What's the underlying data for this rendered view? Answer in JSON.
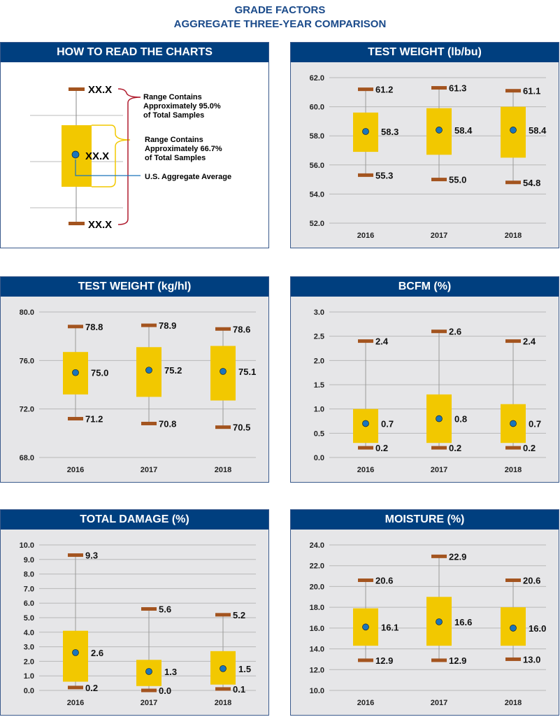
{
  "title_line1": "GRADE FACTORS",
  "title_line2": "AGGREGATE THREE-YEAR COMPARISON",
  "legend": {
    "title": "HOW TO READ THE CHARTS",
    "placeholder": "XX.X",
    "range95": [
      "Range Contains",
      "Approximately 95.0%",
      "of Total Samples"
    ],
    "range667": [
      "Range Contains",
      "Approximately 66.7%",
      "of Total Samples"
    ],
    "average": "U.S. Aggregate Average"
  },
  "colors": {
    "header": "#003f7f",
    "box": "#f2c800",
    "cap": "#a3541f",
    "dot": "#1b75bb",
    "grid": "#b8b8b8"
  },
  "chart_data": [
    {
      "id": "tw-lb",
      "type": "boxplot",
      "title": "TEST WEIGHT (lb/bu)",
      "categories": [
        "2016",
        "2017",
        "2018"
      ],
      "ylim": [
        52,
        62
      ],
      "yticks": [
        "52.0",
        "54.0",
        "56.0",
        "58.0",
        "60.0",
        "62.0"
      ],
      "tick_step": 2,
      "max": [
        61.2,
        61.3,
        61.1
      ],
      "max_labels": [
        "61.2",
        "61.3",
        "61.1"
      ],
      "min": [
        55.3,
        55.0,
        54.8
      ],
      "min_labels": [
        "55.3",
        "55.0",
        "54.8"
      ],
      "avg": [
        58.3,
        58.4,
        58.4
      ],
      "avg_labels": [
        "58.3",
        "58.4",
        "58.4"
      ],
      "box_high": [
        59.6,
        59.9,
        60.0
      ],
      "box_low": [
        56.9,
        56.7,
        56.5
      ]
    },
    {
      "id": "tw-kg",
      "type": "boxplot",
      "title": "TEST WEIGHT (kg/hl)",
      "categories": [
        "2016",
        "2017",
        "2018"
      ],
      "ylim": [
        68,
        80
      ],
      "yticks": [
        "68.0",
        "72.0",
        "76.0",
        "80.0"
      ],
      "tick_step": 4,
      "max": [
        78.8,
        78.9,
        78.6
      ],
      "max_labels": [
        "78.8",
        "78.9",
        "78.6"
      ],
      "min": [
        71.2,
        70.8,
        70.5
      ],
      "min_labels": [
        "71.2",
        "70.8",
        "70.5"
      ],
      "avg": [
        75.0,
        75.2,
        75.1
      ],
      "avg_labels": [
        "75.0",
        "75.2",
        "75.1"
      ],
      "box_high": [
        76.7,
        77.1,
        77.2
      ],
      "box_low": [
        73.2,
        73.0,
        72.7
      ]
    },
    {
      "id": "bcfm",
      "type": "boxplot",
      "title": "BCFM (%)",
      "categories": [
        "2016",
        "2017",
        "2018"
      ],
      "ylim": [
        0,
        3
      ],
      "yticks": [
        "0.0",
        "0.5",
        "1.0",
        "1.5",
        "2.0",
        "2.5",
        "3.0"
      ],
      "tick_step": 0.5,
      "max": [
        2.4,
        2.6,
        2.4
      ],
      "max_labels": [
        "2.4",
        "2.6",
        "2.4"
      ],
      "min": [
        0.2,
        0.2,
        0.2
      ],
      "min_labels": [
        "0.2",
        "0.2",
        "0.2"
      ],
      "avg": [
        0.7,
        0.8,
        0.7
      ],
      "avg_labels": [
        "0.7",
        "0.8",
        "0.7"
      ],
      "box_high": [
        1.0,
        1.3,
        1.1
      ],
      "box_low": [
        0.3,
        0.3,
        0.3
      ]
    },
    {
      "id": "dmg",
      "type": "boxplot",
      "title": "TOTAL DAMAGE (%)",
      "categories": [
        "2016",
        "2017",
        "2018"
      ],
      "ylim": [
        0,
        10
      ],
      "yticks": [
        "0.0",
        "1.0",
        "2.0",
        "3.0",
        "4.0",
        "5.0",
        "6.0",
        "7.0",
        "8.0",
        "9.0",
        "10.0"
      ],
      "tick_step": 1,
      "max": [
        9.3,
        5.6,
        5.2
      ],
      "max_labels": [
        "9.3",
        "5.6",
        "5.2"
      ],
      "min": [
        0.2,
        0.0,
        0.1
      ],
      "min_labels": [
        "0.2",
        "0.0",
        "0.1"
      ],
      "avg": [
        2.6,
        1.3,
        1.5
      ],
      "avg_labels": [
        "2.6",
        "1.3",
        "1.5"
      ],
      "box_high": [
        4.1,
        2.1,
        2.7
      ],
      "box_low": [
        0.6,
        0.3,
        0.4
      ]
    },
    {
      "id": "mst",
      "type": "boxplot",
      "title": "MOISTURE (%)",
      "categories": [
        "2016",
        "2017",
        "2018"
      ],
      "ylim": [
        10,
        24
      ],
      "yticks": [
        "10.0",
        "12.0",
        "14.0",
        "16.0",
        "18.0",
        "20.0",
        "22.0",
        "24.0"
      ],
      "tick_step": 2,
      "max": [
        20.6,
        22.9,
        20.6
      ],
      "max_labels": [
        "20.6",
        "22.9",
        "20.6"
      ],
      "min": [
        12.9,
        12.9,
        13.0
      ],
      "min_labels": [
        "12.9",
        "12.9",
        "13.0"
      ],
      "avg": [
        16.1,
        16.6,
        16.0
      ],
      "avg_labels": [
        "16.1",
        "16.6",
        "16.0"
      ],
      "box_high": [
        17.9,
        19.0,
        18.0
      ],
      "box_low": [
        14.3,
        14.3,
        14.3
      ]
    }
  ]
}
